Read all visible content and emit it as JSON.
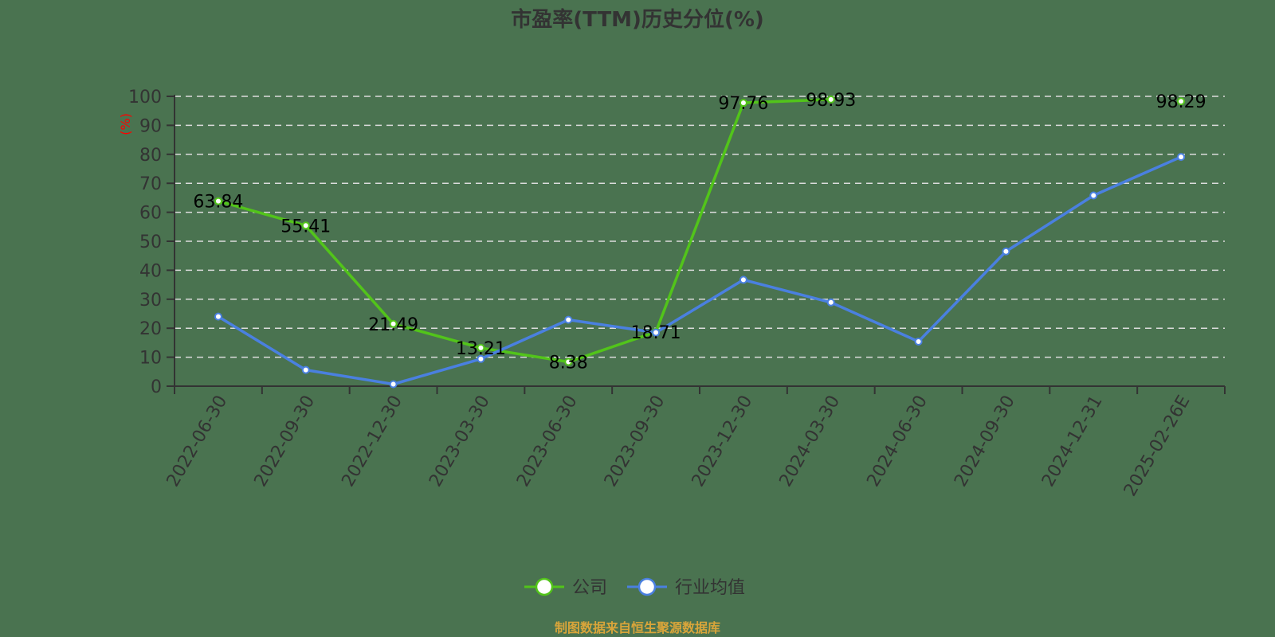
{
  "title": "市盈率(TTM)历史分位(%)",
  "footer": "制图数据来自恒生聚源数据库",
  "legend": [
    {
      "label": "公司",
      "color": "#52c41a"
    },
    {
      "label": "行业均值",
      "color": "#4a80e0"
    }
  ],
  "chart_data": {
    "type": "line",
    "title": "市盈率(TTM)历史分位(%)",
    "xlabel": "",
    "ylabel": "(%)",
    "ylim": [
      0,
      100
    ],
    "yticks": [
      0,
      10,
      20,
      30,
      40,
      50,
      60,
      70,
      80,
      90,
      100
    ],
    "grid": "horizontal dashed",
    "legend_position": "bottom",
    "categories": [
      "2022-06-30",
      "2022-09-30",
      "2022-12-30",
      "2023-03-30",
      "2023-06-30",
      "2023-09-30",
      "2023-12-30",
      "2024-03-30",
      "2024-06-30",
      "2024-09-30",
      "2024-12-31",
      "2025-02-26E"
    ],
    "series": [
      {
        "name": "公司",
        "color": "#52c41a",
        "values": [
          63.84,
          55.41,
          21.49,
          13.21,
          8.38,
          18.71,
          97.76,
          98.93,
          null,
          null,
          null,
          98.29
        ],
        "labels_shown": true
      },
      {
        "name": "行业均值",
        "color": "#4a80e0",
        "values": [
          24.0,
          5.6,
          0.7,
          9.4,
          22.9,
          18.5,
          36.7,
          28.9,
          15.4,
          46.5,
          65.8,
          79.1
        ],
        "labels_shown": false
      }
    ]
  }
}
